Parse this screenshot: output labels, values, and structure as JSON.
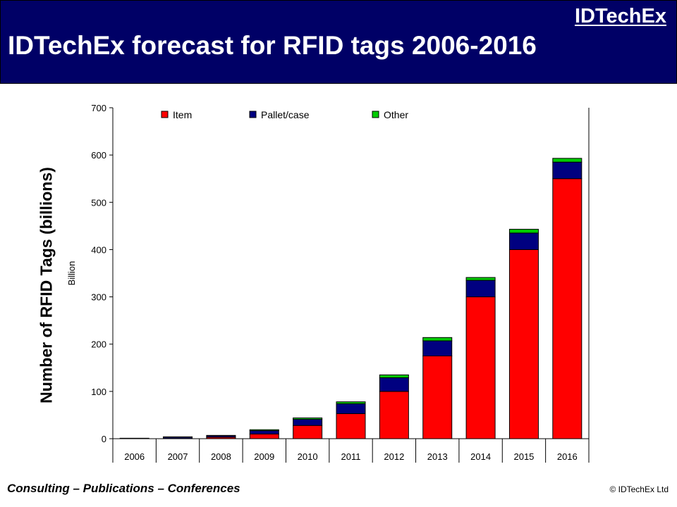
{
  "header": {
    "brand": "IDTechEx",
    "title": "IDTechEx forecast for RFID tags 2006-2016",
    "background": "#000066"
  },
  "side_label": "Number of RFID Tags (billions)",
  "footer": {
    "left": "Consulting – Publications – Conferences",
    "right": "© IDTechEx Ltd"
  },
  "chart_data": {
    "type": "bar",
    "stacked": true,
    "categories": [
      "2006",
      "2007",
      "2008",
      "2009",
      "2010",
      "2011",
      "2012",
      "2013",
      "2014",
      "2015",
      "2016"
    ],
    "series": [
      {
        "name": "Item",
        "color": "#ff0000",
        "values": [
          0,
          0.5,
          3,
          10,
          28,
          53,
          100,
          175,
          300,
          400,
          550
        ]
      },
      {
        "name": "Pallet/case",
        "color": "#000080",
        "values": [
          1,
          3,
          3,
          7,
          13,
          21,
          29,
          32,
          35,
          35,
          35
        ]
      },
      {
        "name": "Other",
        "color": "#00cc00",
        "values": [
          0,
          0.5,
          1,
          2,
          3,
          4,
          6,
          7,
          6,
          8,
          8
        ]
      }
    ],
    "ylabel": "Billion",
    "ylim": [
      0,
      700
    ],
    "yticks": [
      0,
      100,
      200,
      300,
      400,
      500,
      600,
      700
    ],
    "legend": "top",
    "grid": false
  }
}
